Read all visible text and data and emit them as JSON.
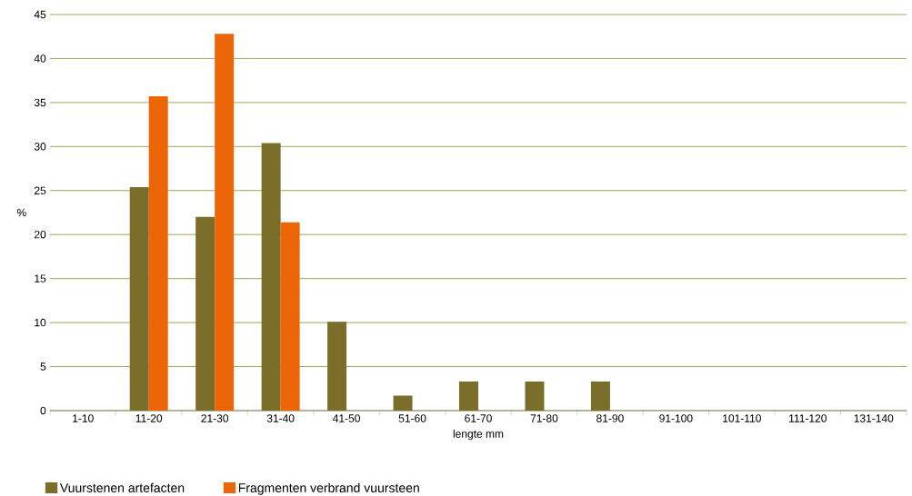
{
  "chart_data": {
    "type": "bar",
    "xlabel": "lengte mm",
    "ylabel": "%",
    "categories": [
      "1-10",
      "11-20",
      "21-30",
      "31-40",
      "41-50",
      "51-60",
      "61-70",
      "71-80",
      "81-90",
      "91-100",
      "101-110",
      "111-120",
      "131-140"
    ],
    "series": [
      {
        "name": "Vuurstenen artefacten",
        "color": "#7a6e2a",
        "values": [
          0,
          25.4,
          22.0,
          30.4,
          10.1,
          1.7,
          3.3,
          3.3,
          3.3,
          0,
          0,
          0,
          0
        ]
      },
      {
        "name": "Fragmenten verbrand vuursteen",
        "color": "#ec6608",
        "values": [
          0,
          35.7,
          42.8,
          21.4,
          0,
          0,
          0,
          0,
          0,
          0,
          0,
          0,
          0
        ]
      }
    ],
    "ylim": [
      0,
      45
    ],
    "yticks": [
      0,
      5,
      10,
      15,
      20,
      25,
      30,
      35,
      40,
      45
    ],
    "grid": "y",
    "legend": "bottom left"
  }
}
